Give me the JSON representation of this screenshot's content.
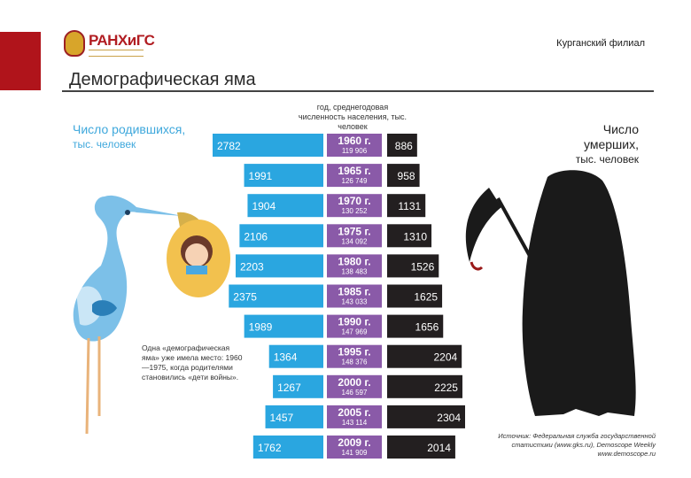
{
  "header": {
    "logo_text": "РАНХиГС",
    "branch": "Курганский филиал",
    "title": "Демографическая яма"
  },
  "labels": {
    "left_title": "Число родившихся,",
    "left_unit": "тыс. человек",
    "right_title": "Число умерших,",
    "right_unit": "тыс. человек",
    "center_head": "год, среднегодовая численность населения, тыс. человек",
    "note": "Одна «демографическая яма» уже имела место: 1960—1975, когда родителями становились «дети войны».",
    "source": "Источник: Федеральная служба государственной статистики (www.gks.ru), Demoscope Weekly www.demoscope.ru"
  },
  "chart_data": {
    "type": "bar",
    "title": "",
    "categories": [
      "1960 г.",
      "1965 г.",
      "1970 г.",
      "1975 г.",
      "1980 г.",
      "1985 г.",
      "1990 г.",
      "1995 г.",
      "2000 г.",
      "2005 г.",
      "2009 г."
    ],
    "population": [
      "119 906",
      "126 749",
      "130 252",
      "134 092",
      "138 483",
      "143 033",
      "147 969",
      "148 376",
      "146 597",
      "143 114",
      "141 909"
    ],
    "series": [
      {
        "name": "Число родившихся, тыс. человек",
        "values": [
          2782,
          1991,
          1904,
          2106,
          2203,
          2375,
          1989,
          1364,
          1267,
          1457,
          1762
        ]
      },
      {
        "name": "Число умерших, тыс. человек",
        "values": [
          886,
          958,
          1131,
          1310,
          1526,
          1625,
          1656,
          2204,
          2225,
          2304,
          2014
        ]
      }
    ],
    "colors": {
      "births": "#2aa6e0",
      "year_box": "#8a5aa8",
      "deaths": "#231f20"
    }
  }
}
